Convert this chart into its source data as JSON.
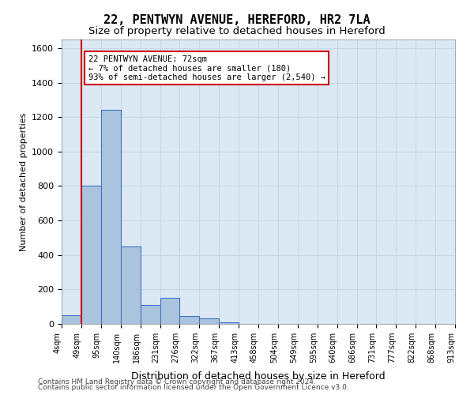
{
  "title_line1": "22, PENTWYN AVENUE, HEREFORD, HR2 7LA",
  "title_line2": "Size of property relative to detached houses in Hereford",
  "xlabel": "Distribution of detached houses by size in Hereford",
  "ylabel": "Number of detached properties",
  "footer_line1": "Contains HM Land Registry data © Crown copyright and database right 2024.",
  "footer_line2": "Contains public sector information licensed under the Open Government Licence v3.0.",
  "bin_labels": [
    "4sqm",
    "49sqm",
    "95sqm",
    "140sqm",
    "186sqm",
    "231sqm",
    "276sqm",
    "322sqm",
    "367sqm",
    "413sqm",
    "458sqm",
    "504sqm",
    "549sqm",
    "595sqm",
    "640sqm",
    "686sqm",
    "731sqm",
    "777sqm",
    "822sqm",
    "868sqm",
    "913sqm"
  ],
  "bar_values": [
    50,
    800,
    1240,
    450,
    110,
    150,
    45,
    30,
    10,
    0,
    0,
    0,
    0,
    0,
    0,
    0,
    0,
    0,
    0,
    0
  ],
  "ylim": [
    0,
    1650
  ],
  "yticks": [
    0,
    200,
    400,
    600,
    800,
    1000,
    1200,
    1400,
    1600
  ],
  "bar_color": "#aac4de",
  "bar_edge_color": "#4472c4",
  "grid_color": "#c8d8e8",
  "annotation_text": "22 PENTWYN AVENUE: 72sqm\n← 7% of detached houses are smaller (180)\n93% of semi-detached houses are larger (2,540) →",
  "annotation_box_color": "#ffffff",
  "annotation_box_edge": "#cc0000",
  "vline_x": 1,
  "vline_color": "#cc0000",
  "plot_bg_color": "#dce9f5"
}
